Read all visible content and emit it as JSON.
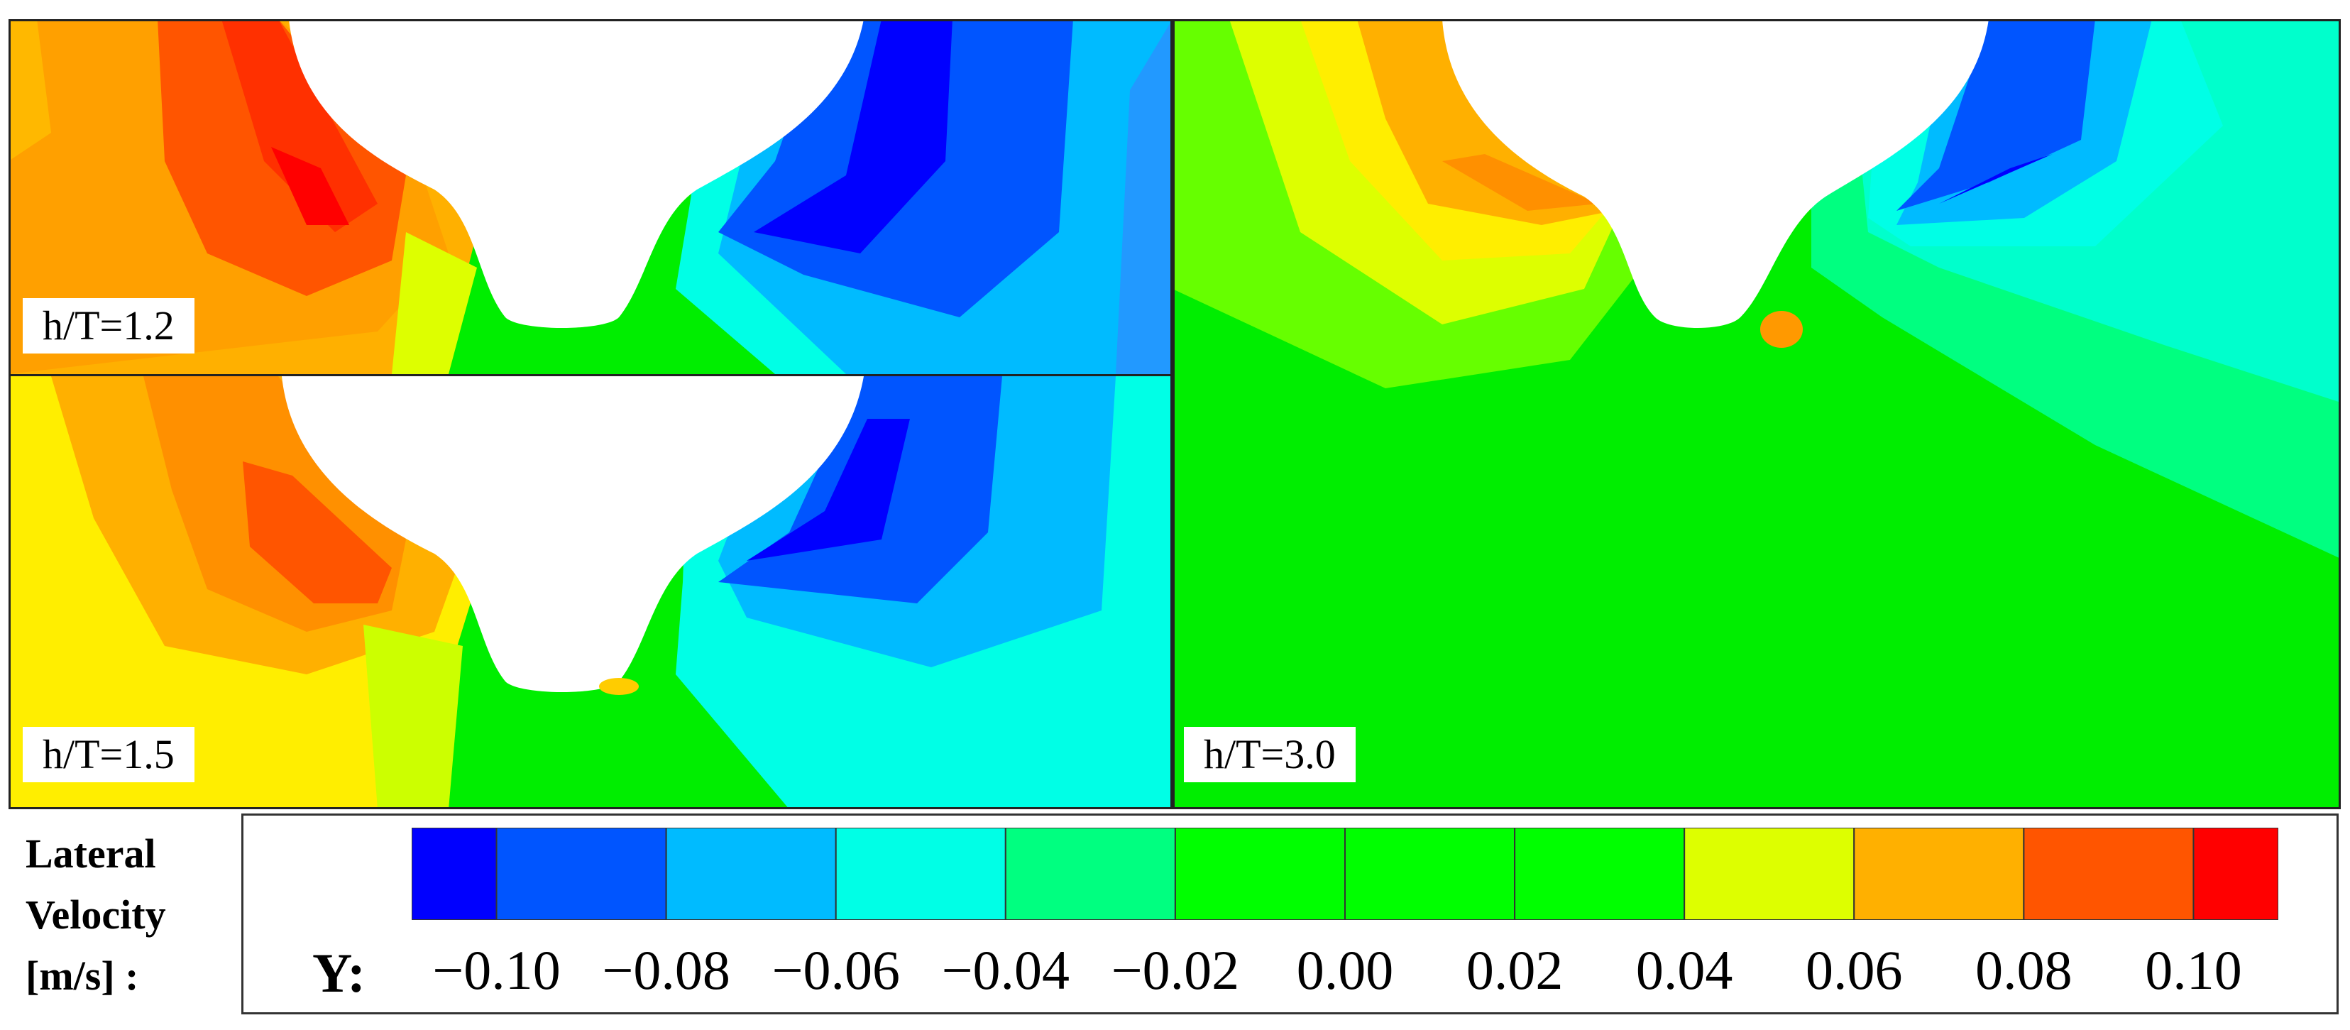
{
  "chart_data": {
    "type": "heatmap",
    "title": "",
    "quantity": "Lateral Velocity",
    "panels": [
      {
        "label": "h/T=1.2"
      },
      {
        "label": "h/T=1.5"
      },
      {
        "label": "h/T=3.0"
      }
    ],
    "colorbar": {
      "title_lines": [
        "Lateral",
        "Velocity",
        "[m/s] :"
      ],
      "variable": "Y:",
      "tick_labels": [
        "−0.10",
        "−0.08",
        "−0.06",
        "−0.04",
        "−0.02",
        "0.00",
        "0.02",
        "0.04",
        "0.06",
        "0.08",
        "0.10"
      ],
      "range": [
        -0.11,
        0.11
      ],
      "levels": [
        -0.11,
        -0.1,
        -0.08,
        -0.06,
        -0.04,
        -0.02,
        0.0,
        0.02,
        0.04,
        0.06,
        0.08,
        0.1,
        0.11
      ],
      "colors": [
        "#0000ff",
        "#0055ff",
        "#00bbff",
        "#00ffe6",
        "#00ff80",
        "#00ff00",
        "#00ff00",
        "#00ff00",
        "#ddff00",
        "#ffb000",
        "#ff5500",
        "#ff0000"
      ]
    }
  }
}
